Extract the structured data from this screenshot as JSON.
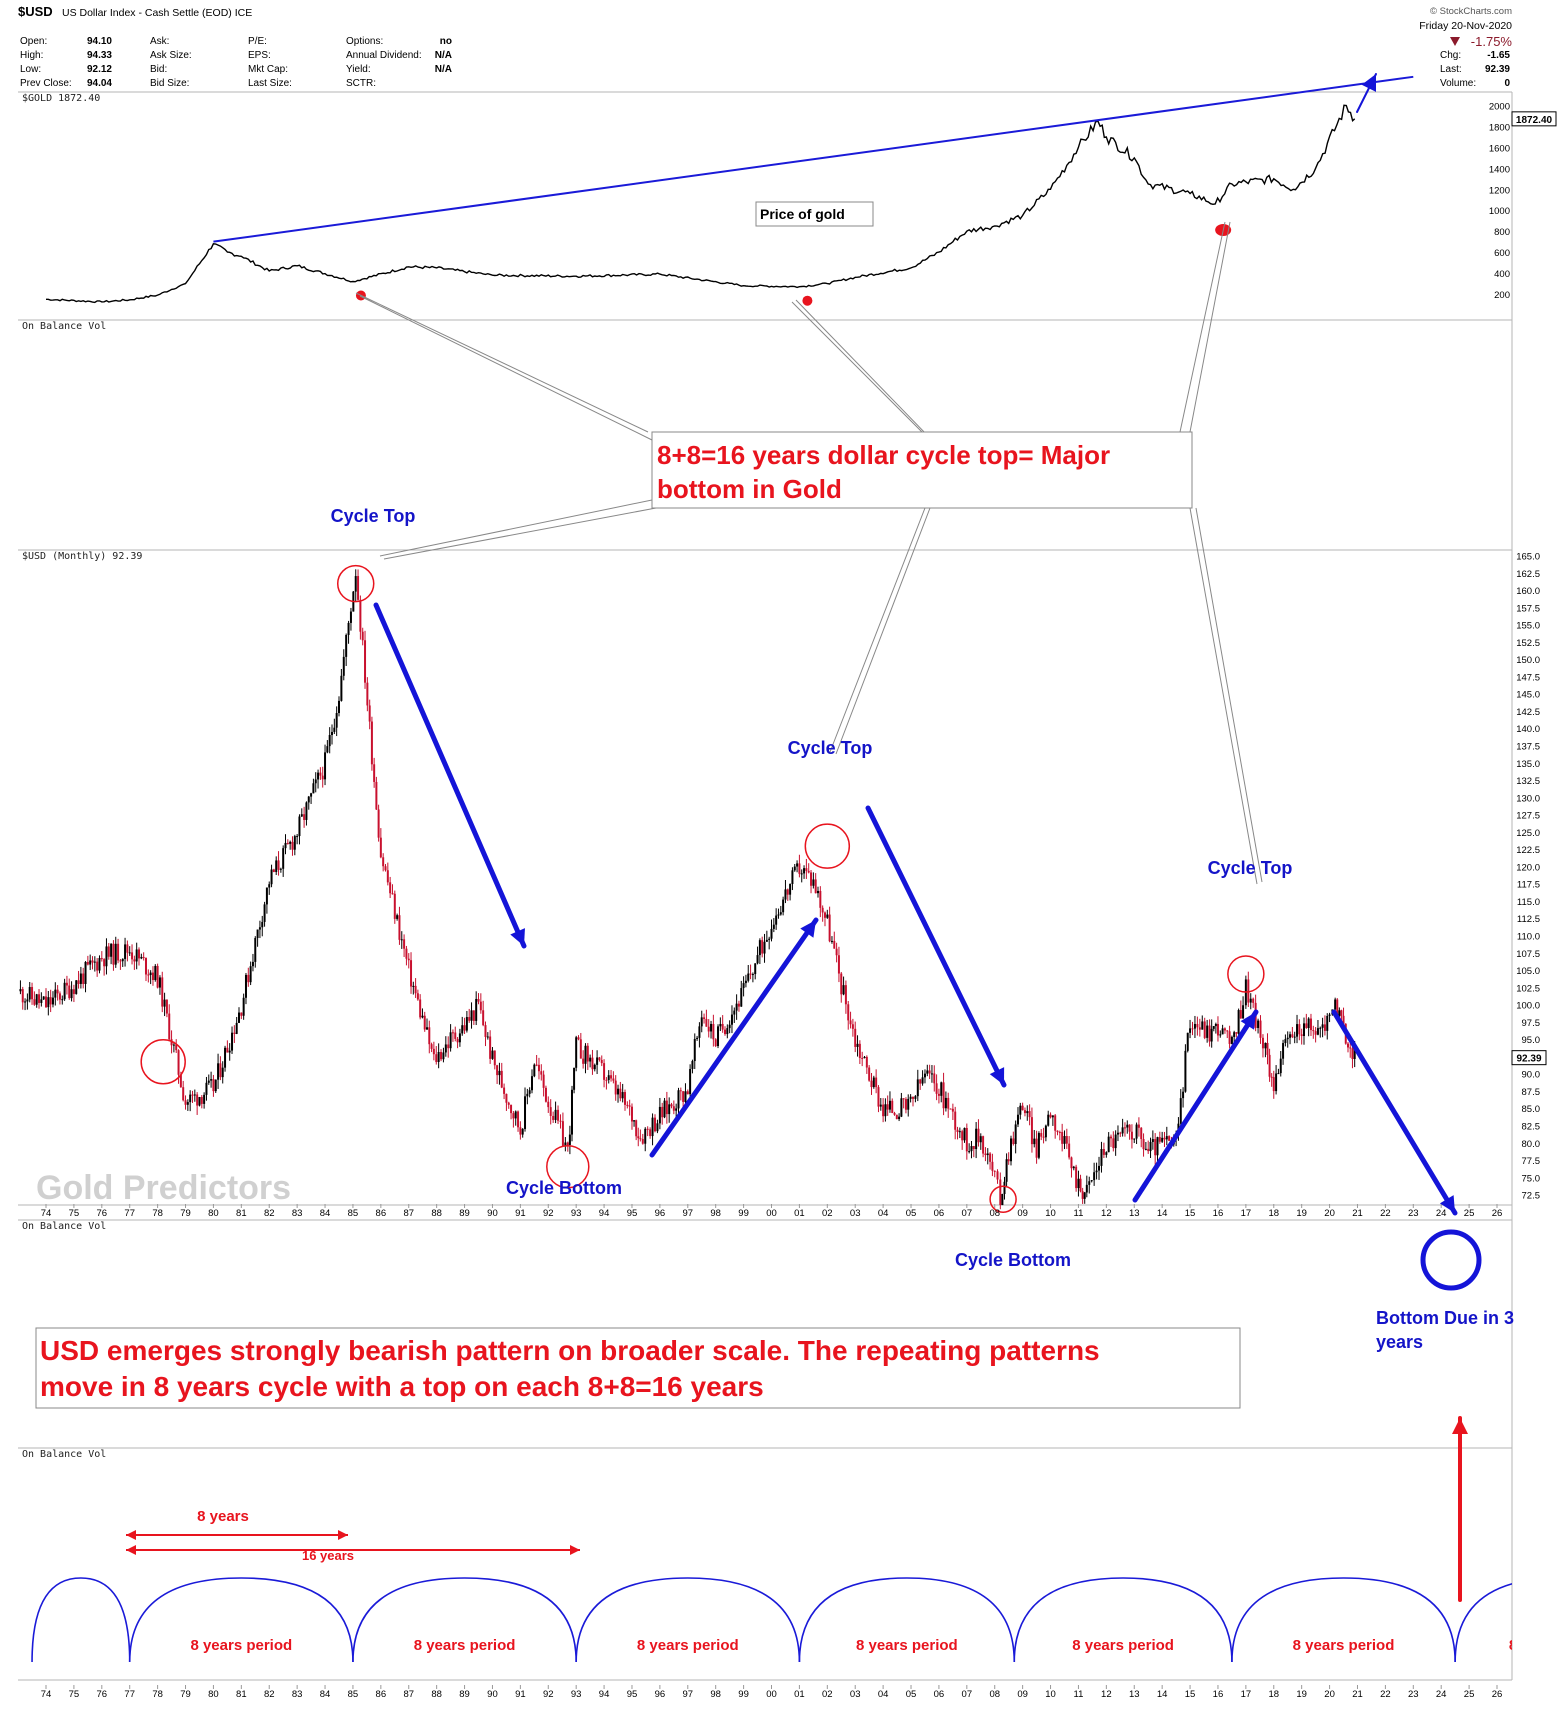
{
  "header": {
    "symbol": "$USD",
    "name": "US Dollar Index - Cash Settle (EOD)",
    "exchange": "ICE",
    "brand": "© StockCharts.com",
    "date_day": "Friday",
    "date": "20-Nov-2020",
    "change_pct": "-1.75%",
    "quote_cols": [
      [
        [
          "Open:",
          "94.10"
        ],
        [
          "High:",
          "94.33"
        ],
        [
          "Low:",
          "92.12"
        ],
        [
          "Prev Close:",
          "94.04"
        ]
      ],
      [
        [
          "Ask:",
          ""
        ],
        [
          "Ask Size:",
          ""
        ],
        [
          "Bid:",
          ""
        ],
        [
          "Bid Size:",
          ""
        ]
      ],
      [
        [
          "P/E:",
          ""
        ],
        [
          "EPS:",
          ""
        ],
        [
          "Mkt Cap:",
          ""
        ],
        [
          "Last Size:",
          ""
        ]
      ],
      [
        [
          "Options:",
          "no"
        ],
        [
          "Annual Dividend:",
          "N/A"
        ],
        [
          "Yield:",
          "N/A"
        ],
        [
          "SCTR:",
          ""
        ]
      ]
    ],
    "quote_right": [
      [
        "Chg:",
        "-1.65"
      ],
      [
        "Last:",
        "92.39"
      ],
      [
        "Volume:",
        "0"
      ]
    ]
  },
  "panels": {
    "gold_label": "$GOLD 1872.40",
    "gold_last_tag": "1872.40",
    "obv_label": "On Balance Vol",
    "usd_label": "$USD (Monthly) 92.39",
    "usd_last_tag": "92.39"
  },
  "annotations": {
    "price_of_gold": "Price of gold",
    "cycle_callout": [
      "8+8=16 years dollar cycle top= Major",
      "bottom in Gold"
    ],
    "cycle_top": "Cycle Top",
    "cycle_bottom": "Cycle Bottom",
    "watermark": "Gold Predictors",
    "bottom_due": [
      "Bottom Due in 3",
      "years"
    ],
    "bearish_note": [
      "USD emerges strongly bearish pattern on broader scale. The repeating patterns",
      "move in 8 years cycle with a top on each 8+8=16 years"
    ],
    "eight_years": "8 years",
    "sixteen_years": "16 years",
    "period_label": "8 years period"
  },
  "chart_data": [
    {
      "type": "line",
      "series": [
        {
          "name": "$GOLD",
          "x": [
            1974,
            1976,
            1977,
            1978,
            1979,
            1980,
            1980.5,
            1981,
            1982,
            1983,
            1985,
            1987,
            1988,
            1990,
            1993,
            1996,
            1999,
            2001,
            2002,
            2003,
            2005,
            2006,
            2007,
            2008,
            2009,
            2010,
            2011,
            2011.7,
            2012,
            2013,
            2013.5,
            2015,
            2015.9,
            2016.5,
            2018,
            2018.7,
            2019.5,
            2020.6,
            2020.9
          ],
          "values": [
            150,
            125,
            145,
            190,
            300,
            680,
            600,
            560,
            420,
            470,
            320,
            460,
            450,
            380,
            370,
            390,
            280,
            270,
            300,
            360,
            450,
            600,
            800,
            850,
            950,
            1200,
            1600,
            1850,
            1700,
            1500,
            1250,
            1160,
            1060,
            1250,
            1300,
            1200,
            1400,
            2000,
            1872.4
          ]
        }
      ],
      "ylim": [
        0,
        2100
      ],
      "y_ticks": [
        200,
        400,
        600,
        800,
        1000,
        1200,
        1400,
        1600,
        1800,
        2000
      ],
      "trendline": [
        [
          1980,
          700
        ],
        [
          2023,
          2140
        ]
      ],
      "bottom_markers": [
        1985,
        2001,
        2015.9
      ],
      "last_value": 1872.4
    },
    {
      "type": "candlestick",
      "series": [
        {
          "name": "$USD (Monthly)",
          "x": [
            1973,
            1974,
            1975,
            1976,
            1977,
            1978,
            1979,
            1980,
            1981,
            1982,
            1983,
            1984,
            1984.5,
            1985.1,
            1985.6,
            1986,
            1987,
            1987.9,
            1988.5,
            1989,
            1989.5,
            1990,
            1990.5,
            1991,
            1991.5,
            1992,
            1992.7,
            1993,
            1994,
            1995,
            1995.3,
            1996,
            1997,
            1997.5,
            1998,
            1999,
            2000,
            2000.5,
            2001,
            2001.5,
            2002,
            2002.5,
            2003,
            2004,
            2004.9,
            2005.5,
            2006,
            2007,
            2007.5,
            2008,
            2008.2,
            2008.5,
            2009,
            2009.5,
            2010,
            2011,
            2011.3,
            2012,
            2013,
            2013.5,
            2014,
            2014.5,
            2015,
            2015.7,
            2016,
            2016.5,
            2016.9,
            2017,
            2017.7,
            2018,
            2018.5,
            2019,
            2019.5,
            2020,
            2020.2,
            2020.5,
            2020.9
          ],
          "values": [
            102,
            100,
            103,
            107,
            108,
            104,
            86,
            88,
            100,
            118,
            125,
            135,
            145,
            163,
            140,
            122,
            105,
            92,
            95,
            97,
            100,
            92,
            87,
            82,
            92,
            86,
            79,
            94,
            90,
            84,
            81,
            84,
            88,
            99,
            95,
            102,
            112,
            116,
            120,
            118,
            112,
            103,
            95,
            85,
            85,
            90,
            88,
            80,
            81,
            75,
            72,
            79,
            86,
            79,
            85,
            74,
            73,
            80,
            82,
            79,
            80,
            80,
            98,
            96,
            97,
            94,
            101,
            103,
            93,
            89,
            95,
            97,
            96,
            98,
            101,
            96,
            92.39
          ]
        }
      ],
      "ylim": [
        71.5,
        165
      ],
      "y_ticks": [
        72.5,
        75.0,
        77.5,
        80.0,
        82.5,
        85.0,
        87.5,
        90.0,
        92.5,
        95.0,
        97.5,
        100.0,
        102.5,
        105.0,
        107.5,
        110.0,
        112.5,
        115.0,
        117.5,
        120.0,
        122.5,
        125.0,
        127.5,
        130.0,
        132.5,
        135.0,
        137.5,
        140.0,
        142.5,
        145.0,
        147.5,
        150.0,
        152.5,
        155.0,
        157.5,
        160.0,
        162.5,
        165.0
      ],
      "x_ticks": [
        "74",
        "75",
        "76",
        "77",
        "78",
        "79",
        "80",
        "81",
        "82",
        "83",
        "84",
        "85",
        "86",
        "87",
        "88",
        "89",
        "90",
        "91",
        "92",
        "93",
        "94",
        "95",
        "96",
        "97",
        "98",
        "99",
        "00",
        "01",
        "02",
        "03",
        "04",
        "05",
        "06",
        "07",
        "08",
        "09",
        "10",
        "11",
        "12",
        "13",
        "14",
        "15",
        "16",
        "17",
        "18",
        "19",
        "20",
        "21",
        "22",
        "23",
        "24",
        "25",
        "26"
      ],
      "cycle_tops": [
        1985.1,
        2002,
        2017
      ],
      "cycle_bottoms": [
        1992.7,
        2008.3
      ],
      "last_value": 92.39
    }
  ]
}
